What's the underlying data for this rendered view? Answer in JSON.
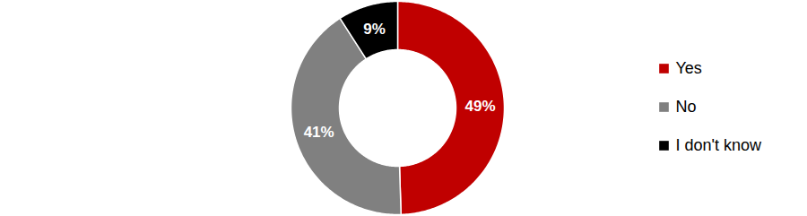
{
  "chart_data": {
    "type": "donut",
    "categories": [
      "Yes",
      "No",
      "I don't know"
    ],
    "values": [
      49,
      41,
      9
    ],
    "value_labels": [
      "49%",
      "41%",
      "9%"
    ],
    "colors": [
      "#c00000",
      "#808080",
      "#000000"
    ],
    "data_labels": true,
    "legend": "right"
  }
}
